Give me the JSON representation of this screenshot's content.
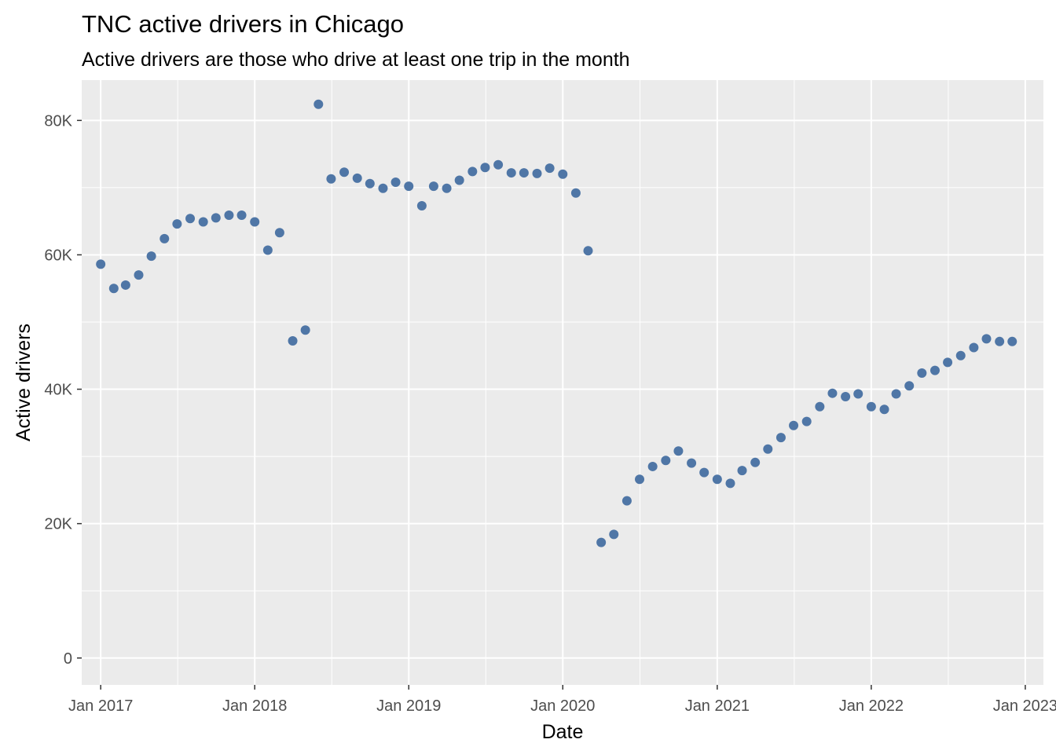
{
  "chart_data": {
    "type": "scatter",
    "title": "TNC active drivers in Chicago",
    "subtitle": "Active drivers are those who drive at least one trip in the month",
    "xlabel": "Date",
    "ylabel": "Active drivers",
    "xlim": [
      "2016-11-17",
      "2023-02-13"
    ],
    "ylim": [
      -4000,
      86000
    ],
    "x_ticks": [
      {
        "value": "2017-01-01",
        "label": "Jan 2017"
      },
      {
        "value": "2018-01-01",
        "label": "Jan 2018"
      },
      {
        "value": "2019-01-01",
        "label": "Jan 2019"
      },
      {
        "value": "2020-01-01",
        "label": "Jan 2020"
      },
      {
        "value": "2021-01-01",
        "label": "Jan 2021"
      },
      {
        "value": "2022-01-01",
        "label": "Jan 2022"
      },
      {
        "value": "2023-01-01",
        "label": "Jan 2023"
      }
    ],
    "y_ticks": [
      {
        "value": 0,
        "label": "0"
      },
      {
        "value": 20000,
        "label": "20K"
      },
      {
        "value": 40000,
        "label": "40K"
      },
      {
        "value": 60000,
        "label": "60K"
      },
      {
        "value": 80000,
        "label": "80K"
      }
    ],
    "grid": true,
    "legend": "none",
    "point_color": "#4f76a6",
    "panel_color": "#ebebeb",
    "grid_color": "#ffffff",
    "series": [
      {
        "x": [
          "2017-01-01",
          "2017-02-01",
          "2017-03-01",
          "2017-04-01",
          "2017-05-01",
          "2017-06-01",
          "2017-07-01",
          "2017-08-01",
          "2017-09-01",
          "2017-10-01",
          "2017-11-01",
          "2017-12-01",
          "2018-01-01",
          "2018-02-01",
          "2018-03-01",
          "2018-04-01",
          "2018-05-01",
          "2018-06-01",
          "2018-07-01",
          "2018-08-01",
          "2018-09-01",
          "2018-10-01",
          "2018-11-01",
          "2018-12-01",
          "2019-01-01",
          "2019-02-01",
          "2019-03-01",
          "2019-04-01",
          "2019-05-01",
          "2019-06-01",
          "2019-07-01",
          "2019-08-01",
          "2019-09-01",
          "2019-10-01",
          "2019-11-01",
          "2019-12-01",
          "2020-01-01",
          "2020-02-01",
          "2020-03-01",
          "2020-04-01",
          "2020-05-01",
          "2020-06-01",
          "2020-07-01",
          "2020-08-01",
          "2020-09-01",
          "2020-10-01",
          "2020-11-01",
          "2020-12-01",
          "2021-01-01",
          "2021-02-01",
          "2021-03-01",
          "2021-04-01",
          "2021-05-01",
          "2021-06-01",
          "2021-07-01",
          "2021-08-01",
          "2021-09-01",
          "2021-10-01",
          "2021-11-01",
          "2021-12-01",
          "2022-01-01",
          "2022-02-01",
          "2022-03-01",
          "2022-04-01",
          "2022-05-01",
          "2022-06-01",
          "2022-07-01",
          "2022-08-01",
          "2022-09-01",
          "2022-10-01",
          "2022-11-01",
          "2022-12-01"
        ],
        "y": [
          58600,
          55000,
          55500,
          57000,
          59800,
          62400,
          64600,
          65400,
          64900,
          65500,
          65900,
          65900,
          64900,
          60700,
          63300,
          47200,
          48800,
          82400,
          71300,
          72300,
          71400,
          70600,
          69900,
          70800,
          70200,
          67300,
          70200,
          69900,
          71100,
          72400,
          73000,
          73400,
          72200,
          72200,
          72100,
          72900,
          72000,
          69200,
          60600,
          17200,
          18400,
          23400,
          26600,
          28500,
          29400,
          30800,
          29000,
          27600,
          26600,
          26000,
          27900,
          29100,
          31100,
          32800,
          34600,
          35200,
          37400,
          39400,
          38900,
          39300,
          37400,
          37000,
          39300,
          40500,
          42400,
          42800,
          44000,
          45000,
          46200,
          47500,
          47100,
          47100
        ]
      }
    ]
  }
}
